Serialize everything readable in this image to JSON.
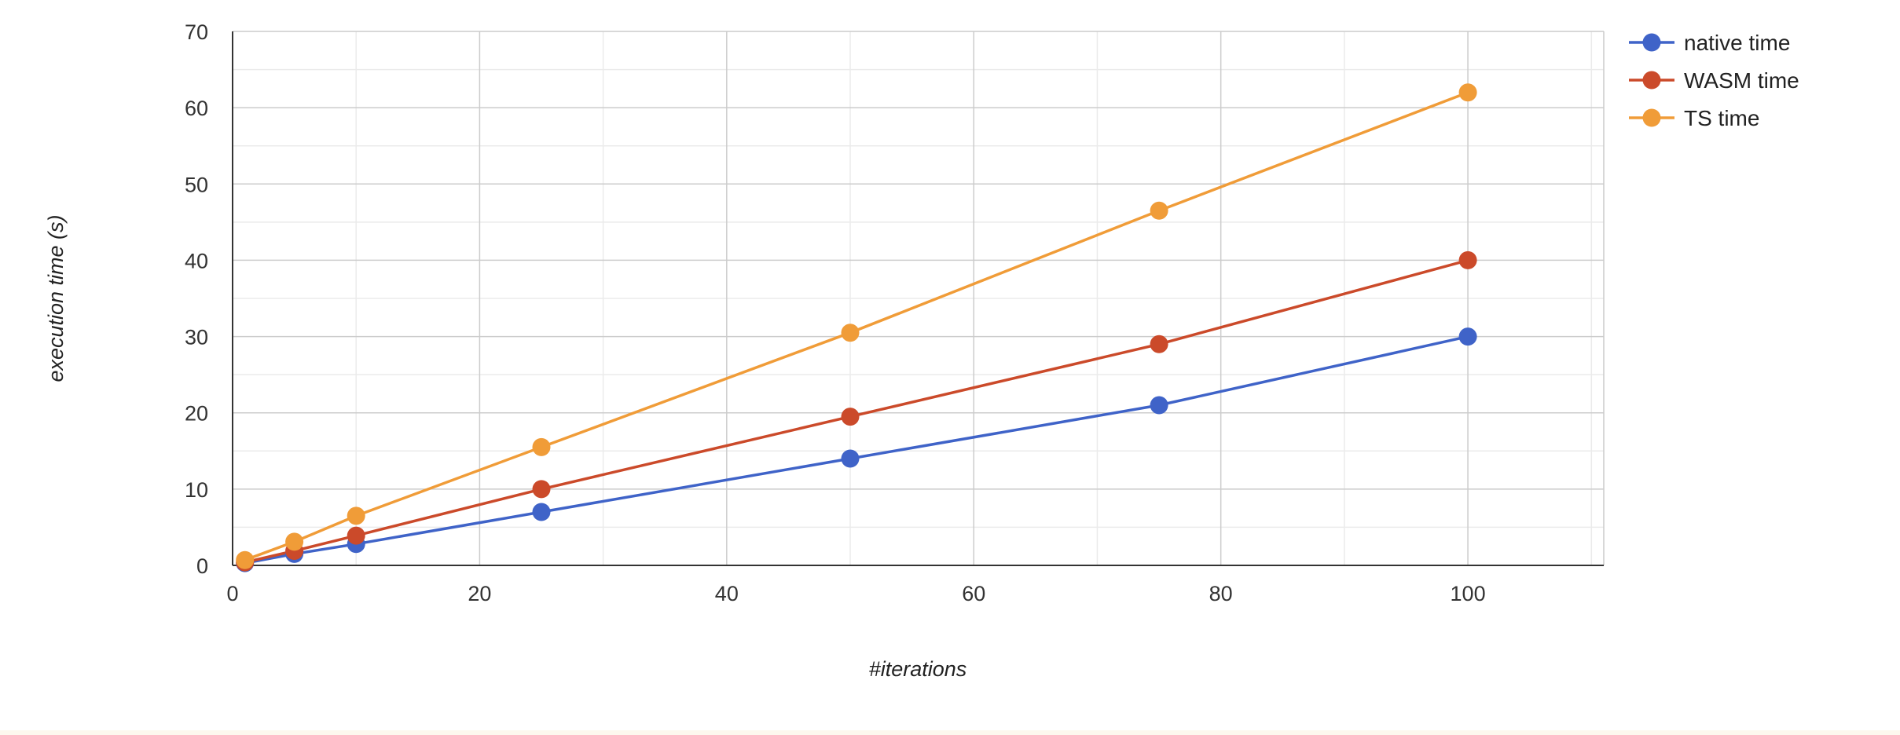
{
  "chart_data": {
    "type": "line",
    "title": "",
    "xlabel": "#iterations",
    "ylabel": "execution time (s)",
    "xlim": [
      0,
      111
    ],
    "ylim": [
      0,
      70
    ],
    "x_ticks": [
      0,
      20,
      40,
      60,
      80,
      100
    ],
    "y_ticks": [
      0,
      10,
      20,
      30,
      40,
      50,
      60,
      70
    ],
    "grid": true,
    "legend_position": "top-right",
    "series": [
      {
        "name": "native time",
        "color": "#3f63c8",
        "points": [
          [
            1,
            0.3
          ],
          [
            5,
            1.5
          ],
          [
            10,
            2.8
          ],
          [
            25,
            7
          ],
          [
            50,
            14
          ],
          [
            75,
            21
          ],
          [
            100,
            30
          ]
        ]
      },
      {
        "name": "WASM time",
        "color": "#cb4a2a",
        "points": [
          [
            1,
            0.4
          ],
          [
            5,
            1.9
          ],
          [
            10,
            3.9
          ],
          [
            25,
            10
          ],
          [
            50,
            19.5
          ],
          [
            75,
            29
          ],
          [
            100,
            40
          ]
        ]
      },
      {
        "name": "TS time",
        "color": "#f09c38",
        "points": [
          [
            1,
            0.7
          ],
          [
            5,
            3.1
          ],
          [
            10,
            6.5
          ],
          [
            25,
            15.5
          ],
          [
            50,
            30.5
          ],
          [
            75,
            46.5
          ],
          [
            100,
            62
          ]
        ]
      }
    ]
  }
}
